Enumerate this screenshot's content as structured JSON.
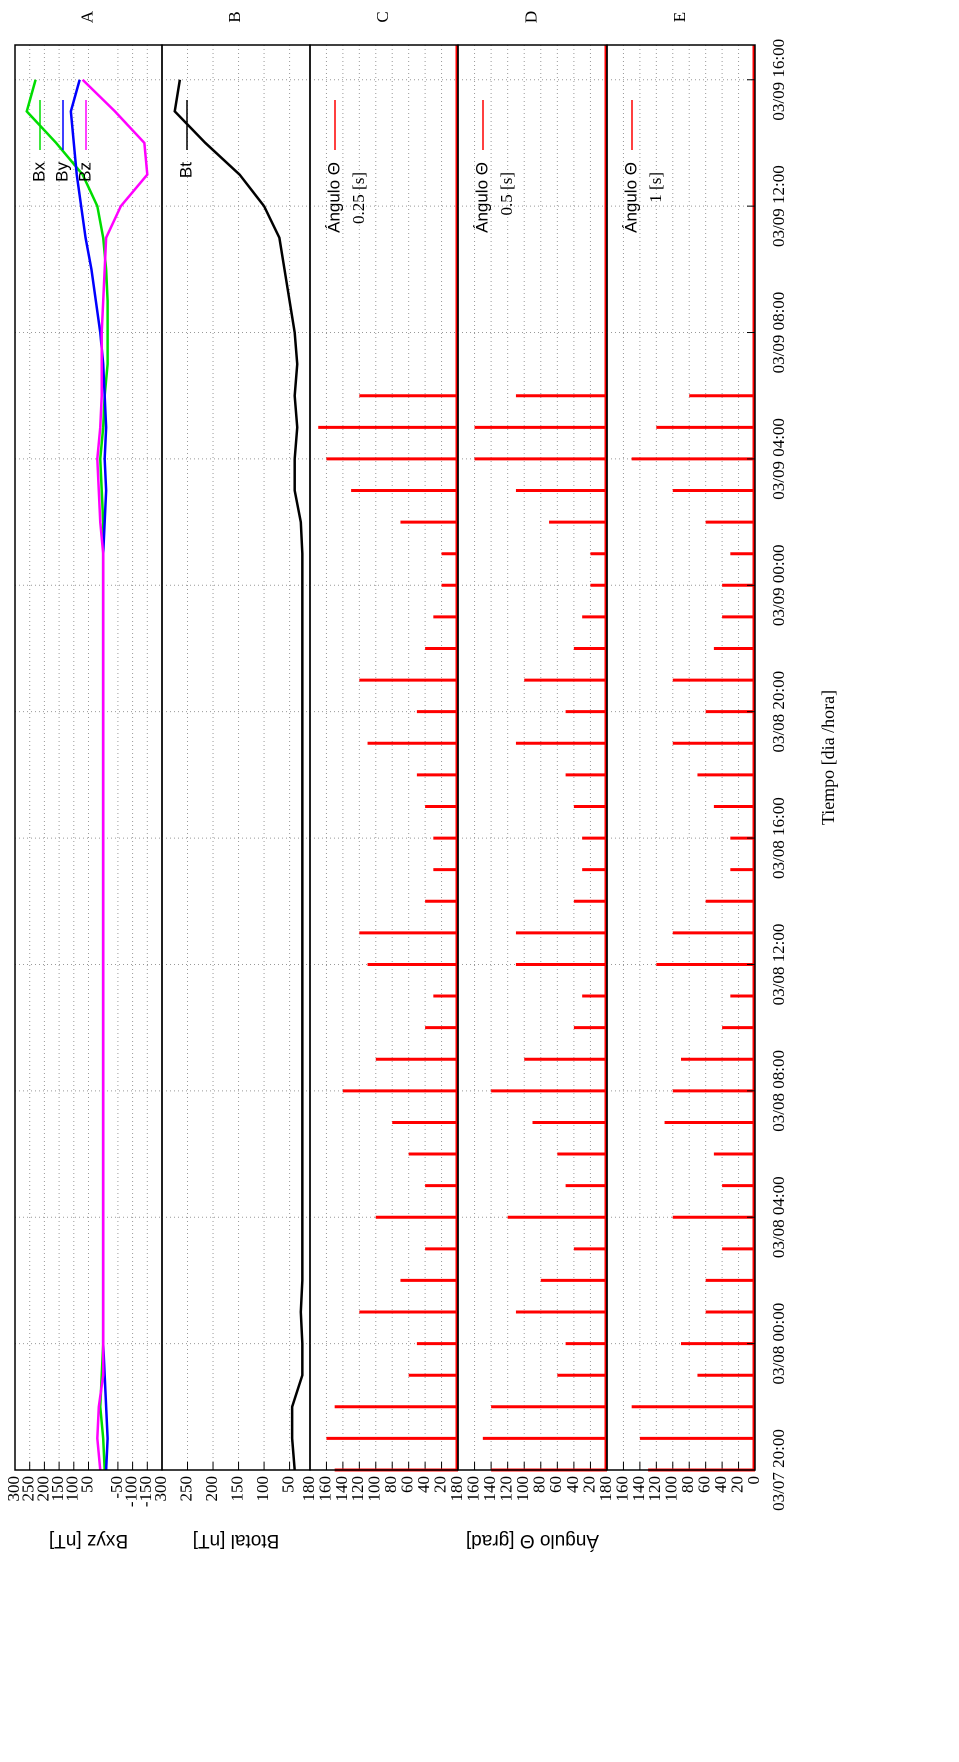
{
  "chart_data": [
    {
      "type": "line",
      "label": "A",
      "ylabel": "Bxyz [nT]",
      "x": [
        20,
        21,
        22,
        23,
        24,
        25,
        26,
        27,
        28,
        29,
        30,
        31,
        32,
        33,
        34,
        35,
        36,
        37,
        38,
        39,
        40,
        41,
        42,
        43,
        44,
        45,
        46,
        47,
        48,
        49,
        50,
        51,
        52,
        53,
        54,
        55,
        56,
        57,
        58,
        59,
        60,
        61,
        62,
        63,
        64
      ],
      "series": [
        {
          "name": "Bx",
          "color": "#00dd00",
          "values": [
            -5,
            0,
            10,
            5,
            0,
            0,
            0,
            0,
            0,
            0,
            0,
            0,
            0,
            0,
            0,
            0,
            0,
            0,
            0,
            0,
            0,
            0,
            0,
            0,
            0,
            0,
            0,
            0,
            0,
            0,
            0,
            5,
            10,
            0,
            -5,
            -15,
            -15,
            -15,
            -10,
            0,
            20,
            70,
            160,
            260,
            230
          ]
        },
        {
          "name": "By",
          "color": "#0000ff",
          "values": [
            -10,
            -15,
            -10,
            -5,
            0,
            0,
            0,
            0,
            0,
            0,
            0,
            0,
            0,
            0,
            0,
            0,
            0,
            0,
            0,
            0,
            0,
            0,
            0,
            0,
            0,
            0,
            0,
            0,
            0,
            0,
            -5,
            -10,
            -5,
            -10,
            -5,
            0,
            10,
            25,
            40,
            60,
            75,
            90,
            100,
            110,
            80
          ]
        },
        {
          "name": "Bz",
          "color": "#ff00ff",
          "values": [
            10,
            20,
            15,
            0,
            0,
            0,
            0,
            0,
            0,
            0,
            0,
            0,
            0,
            0,
            0,
            0,
            0,
            0,
            0,
            0,
            0,
            0,
            0,
            0,
            0,
            0,
            0,
            0,
            0,
            0,
            10,
            15,
            20,
            10,
            5,
            5,
            5,
            0,
            -5,
            -10,
            -60,
            -150,
            -140,
            -40,
            70
          ]
        }
      ],
      "ylim": [
        -200,
        300
      ],
      "yticks": [
        300,
        250,
        200,
        150,
        100,
        50,
        -50,
        -100,
        -150
      ],
      "grid": true
    },
    {
      "type": "line",
      "label": "B",
      "ylabel": "Btotal [nT]",
      "x": [
        20,
        21,
        22,
        23,
        24,
        25,
        26,
        27,
        28,
        29,
        30,
        31,
        32,
        33,
        34,
        35,
        36,
        37,
        38,
        39,
        40,
        41,
        42,
        43,
        44,
        45,
        46,
        47,
        48,
        49,
        50,
        51,
        52,
        53,
        54,
        55,
        56,
        57,
        58,
        59,
        60,
        61,
        62,
        63,
        64
      ],
      "series": [
        {
          "name": "Bt",
          "color": "#000000",
          "values": [
            40,
            45,
            45,
            25,
            25,
            28,
            25,
            25,
            25,
            25,
            25,
            25,
            25,
            25,
            25,
            25,
            25,
            25,
            25,
            25,
            25,
            25,
            25,
            25,
            25,
            25,
            25,
            25,
            25,
            25,
            28,
            40,
            40,
            35,
            40,
            35,
            40,
            50,
            60,
            70,
            100,
            148,
            215,
            275,
            265
          ]
        }
      ],
      "ylim": [
        10,
        300
      ],
      "yticks": [
        300,
        250,
        200,
        150,
        100,
        50
      ],
      "grid": true
    },
    {
      "type": "bar",
      "label": "C",
      "subtitle": "0.25 [s]",
      "x": [
        20,
        21,
        22,
        23,
        24,
        25,
        26,
        27,
        28,
        29,
        30,
        31,
        32,
        33,
        34,
        35,
        36,
        37,
        38,
        39,
        40,
        41,
        42,
        43,
        44,
        45,
        46,
        47,
        48,
        49,
        50,
        51,
        52,
        53,
        54,
        55,
        56,
        57,
        58,
        59,
        60,
        61,
        62,
        63,
        64
      ],
      "series": [
        {
          "name": "Ángulo Θ",
          "color": "#ff0000",
          "values": [
            150,
            160,
            150,
            60,
            50,
            120,
            70,
            40,
            100,
            40,
            60,
            80,
            140,
            100,
            40,
            30,
            110,
            120,
            40,
            30,
            30,
            40,
            50,
            110,
            50,
            120,
            40,
            30,
            20,
            20,
            70,
            130,
            160,
            170,
            120,
            0,
            0,
            0,
            0,
            0,
            0,
            0,
            0,
            0,
            0
          ]
        }
      ],
      "ylim": [
        0,
        180
      ],
      "yticks": [
        180,
        160,
        140,
        120,
        100,
        80,
        60,
        40,
        20
      ],
      "grid": true
    },
    {
      "type": "bar",
      "label": "D",
      "subtitle": "0.5 [s]",
      "ylabel": "Ángulo Θ [grad]",
      "x": [
        20,
        21,
        22,
        23,
        24,
        25,
        26,
        27,
        28,
        29,
        30,
        31,
        32,
        33,
        34,
        35,
        36,
        37,
        38,
        39,
        40,
        41,
        42,
        43,
        44,
        45,
        46,
        47,
        48,
        49,
        50,
        51,
        52,
        53,
        54,
        55,
        56,
        57,
        58,
        59,
        60,
        61,
        62,
        63,
        64
      ],
      "series": [
        {
          "name": "Ángulo Θ",
          "color": "#ff0000",
          "values": [
            140,
            150,
            140,
            60,
            50,
            110,
            80,
            40,
            120,
            50,
            60,
            90,
            140,
            100,
            40,
            30,
            110,
            110,
            40,
            30,
            30,
            40,
            50,
            110,
            50,
            100,
            40,
            30,
            20,
            20,
            70,
            110,
            160,
            160,
            110,
            0,
            0,
            0,
            0,
            0,
            0,
            0,
            0,
            0,
            0
          ]
        }
      ],
      "ylim": [
        0,
        180
      ],
      "yticks": [
        180,
        160,
        140,
        120,
        100,
        80,
        60,
        40,
        20
      ],
      "grid": true
    },
    {
      "type": "bar",
      "label": "E",
      "subtitle": "1 [s]",
      "xlabel": "Tiempo [dia /hora]",
      "x": [
        20,
        21,
        22,
        23,
        24,
        25,
        26,
        27,
        28,
        29,
        30,
        31,
        32,
        33,
        34,
        35,
        36,
        37,
        38,
        39,
        40,
        41,
        42,
        43,
        44,
        45,
        46,
        47,
        48,
        49,
        50,
        51,
        52,
        53,
        54,
        55,
        56,
        57,
        58,
        59,
        60,
        61,
        62,
        63,
        64
      ],
      "series": [
        {
          "name": "Ángulo Θ",
          "color": "#ff0000",
          "values": [
            130,
            140,
            150,
            70,
            90,
            60,
            60,
            40,
            100,
            40,
            50,
            110,
            100,
            90,
            40,
            30,
            120,
            100,
            60,
            30,
            30,
            50,
            70,
            100,
            60,
            100,
            50,
            40,
            40,
            30,
            60,
            100,
            150,
            120,
            80,
            0,
            0,
            0,
            0,
            0,
            0,
            0,
            0,
            0,
            0
          ]
        }
      ],
      "ylim": [
        0,
        180
      ],
      "yticks": [
        180,
        160,
        140,
        120,
        100,
        80,
        60,
        40,
        20,
        0
      ],
      "grid": true,
      "xlim": [
        20,
        65.1
      ],
      "xticks": [
        {
          "value": 20,
          "label": "03/07 20:00"
        },
        {
          "value": 24,
          "label": "03/08 00:00"
        },
        {
          "value": 28,
          "label": "03/08 04:00"
        },
        {
          "value": 32,
          "label": "03/08 08:00"
        },
        {
          "value": 36,
          "label": "03/08 12:00"
        },
        {
          "value": 40,
          "label": "03/08 16:00"
        },
        {
          "value": 44,
          "label": "03/08 20:00"
        },
        {
          "value": 48,
          "label": "03/09 00:00"
        },
        {
          "value": 52,
          "label": "03/09 04:00"
        },
        {
          "value": 56,
          "label": "03/09 08:00"
        },
        {
          "value": 60,
          "label": "03/09 12:00"
        },
        {
          "value": 64,
          "label": "03/09 16:00"
        }
      ]
    }
  ]
}
